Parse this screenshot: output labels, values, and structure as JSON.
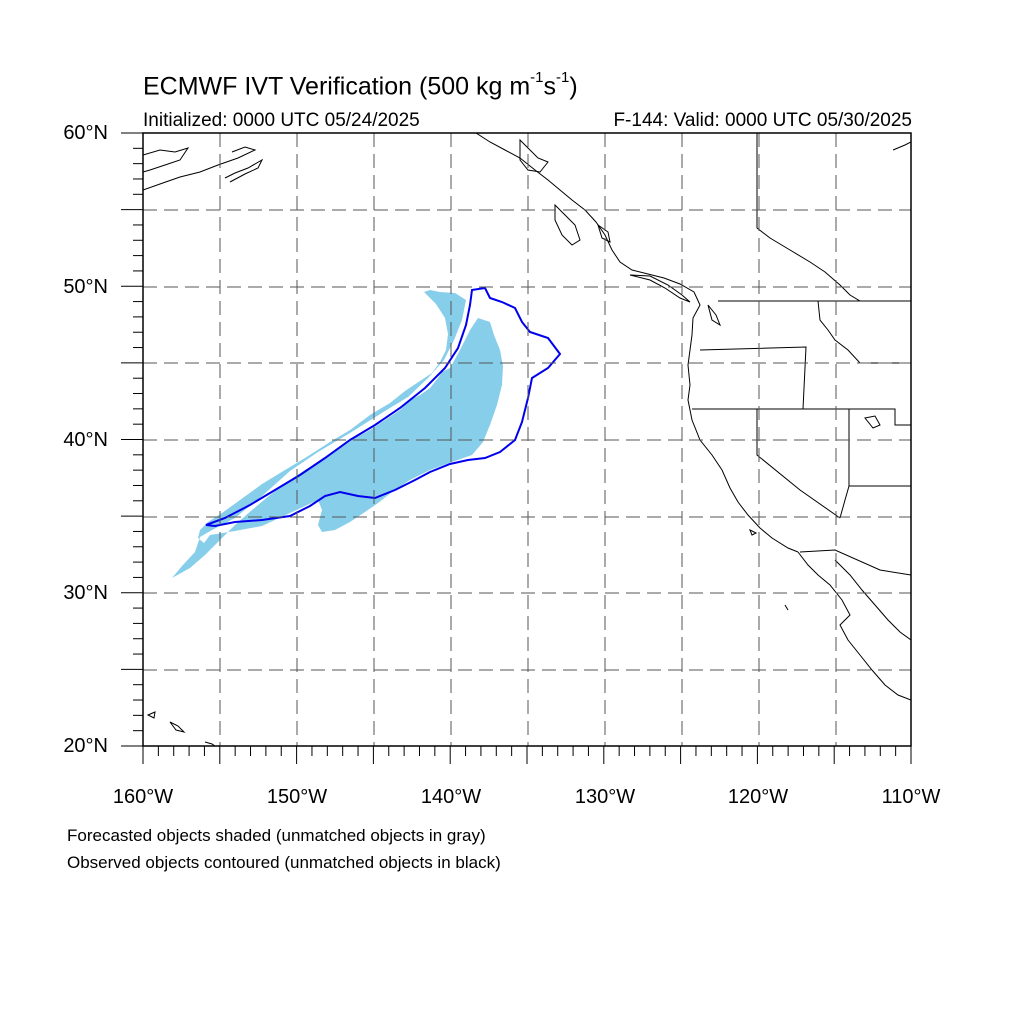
{
  "title": {
    "prefix": "ECMWF IVT Verification (500 kg m",
    "exp1": "-1",
    "mid": "s",
    "exp2": "-1",
    "suffix": ")"
  },
  "initialized": "Initialized: 0000 UTC 05/24/2025",
  "valid": "F-144: Valid: 0000 UTC 05/30/2025",
  "lat_labels": [
    "60°N",
    "50°N",
    "40°N",
    "30°N",
    "20°N"
  ],
  "lon_labels": [
    "160°W",
    "150°W",
    "140°W",
    "130°W",
    "120°W",
    "110°W"
  ],
  "notes": {
    "line1": "Forecasted objects shaded (unmatched objects in gray)",
    "line2": "Observed objects contoured (unmatched objects in black)"
  },
  "colors": {
    "forecast_fill": "#87CEEB",
    "observed_contour": "#0000EE",
    "coastline": "#000000",
    "grid": "#555555"
  },
  "map_extent": {
    "lon_min": -160,
    "lon_max": -110,
    "lat_min": 20,
    "lat_max": 60
  }
}
